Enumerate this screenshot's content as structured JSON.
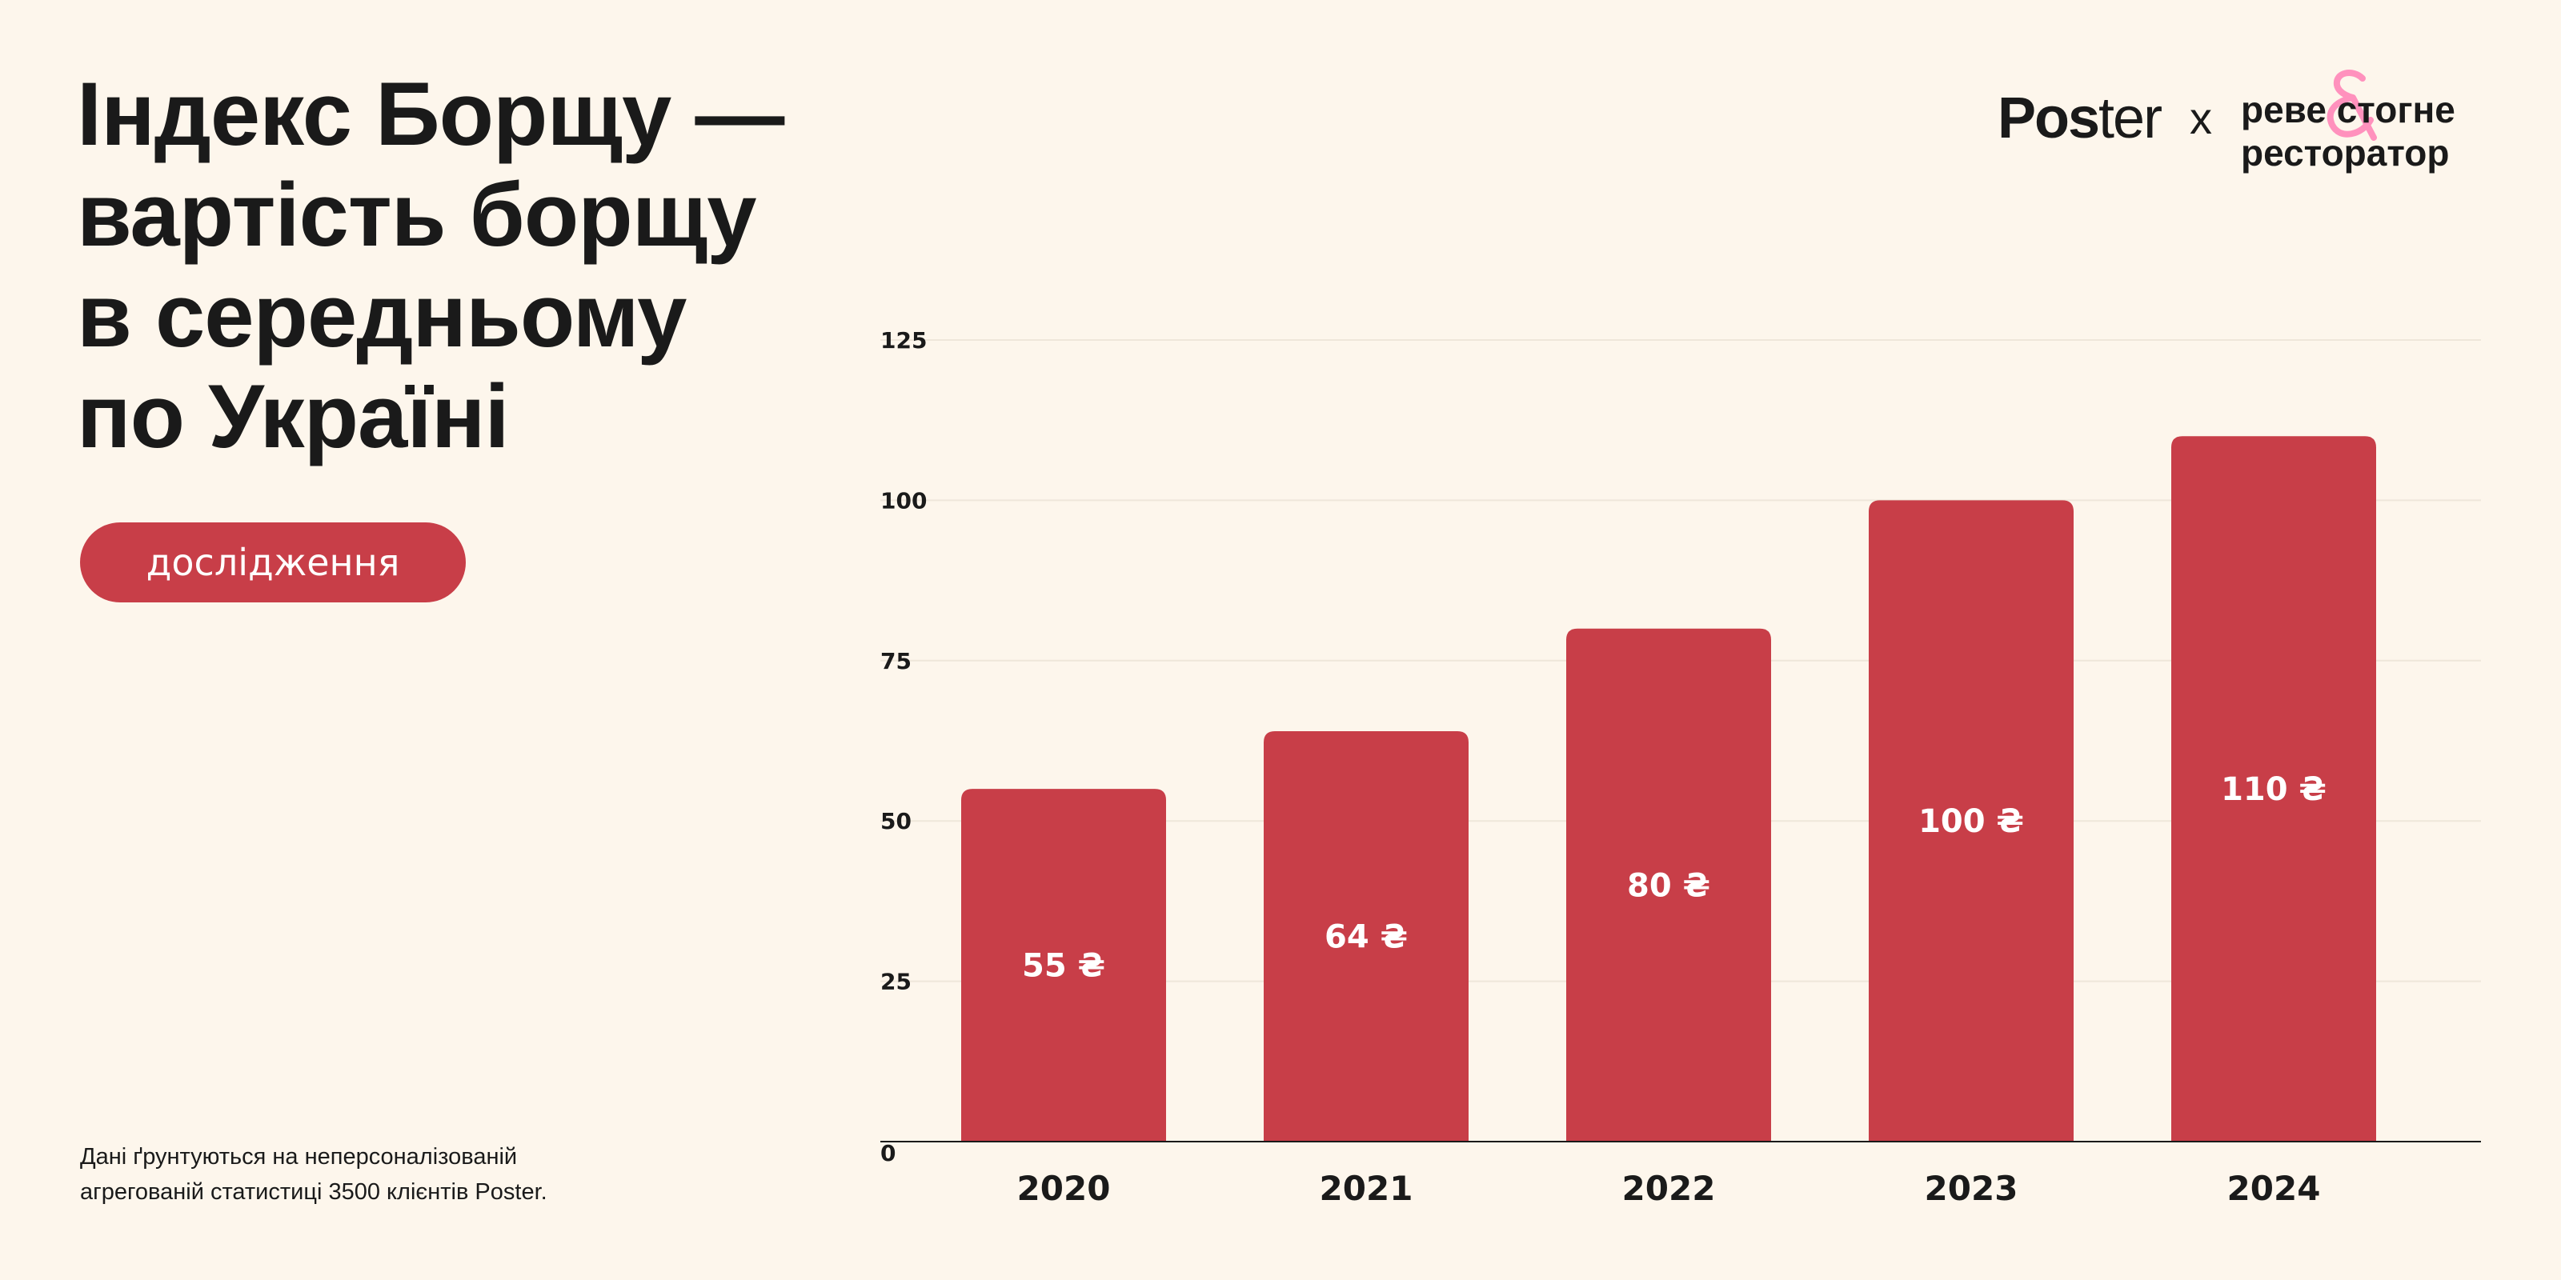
{
  "title_lines": [
    "Індекс Борщу —",
    "вартість борщу",
    "в середньому",
    "по Україні"
  ],
  "badge": "дослідження",
  "footnote_lines": [
    "Дані ґрунтуються на неперсоналізованій",
    "агрегованій статистиці 3500 клієнтів Poster."
  ],
  "logo": {
    "poster_bold": "Pos",
    "poster_light": "ter",
    "x": "x",
    "partner_line1": "реве стогне",
    "partner_line2": "ресторатор",
    "amp": "&"
  },
  "colors": {
    "bar": "#C83E48",
    "background": "#FDF6EC",
    "accent_pink": "#FF7FB5"
  },
  "chart_data": {
    "type": "bar",
    "categories": [
      "2020",
      "2021",
      "2022",
      "2023",
      "2024"
    ],
    "values": [
      55,
      64,
      80,
      100,
      110
    ],
    "value_labels": [
      "55 ₴",
      "64 ₴",
      "80 ₴",
      "100 ₴",
      "110 ₴"
    ],
    "yticks": [
      0,
      25,
      50,
      75,
      100,
      125
    ],
    "ylim": [
      0,
      125
    ],
    "title": "Індекс Борщу — вартість борщу в середньому по Україні",
    "xlabel": "",
    "ylabel": "",
    "grid": true
  }
}
